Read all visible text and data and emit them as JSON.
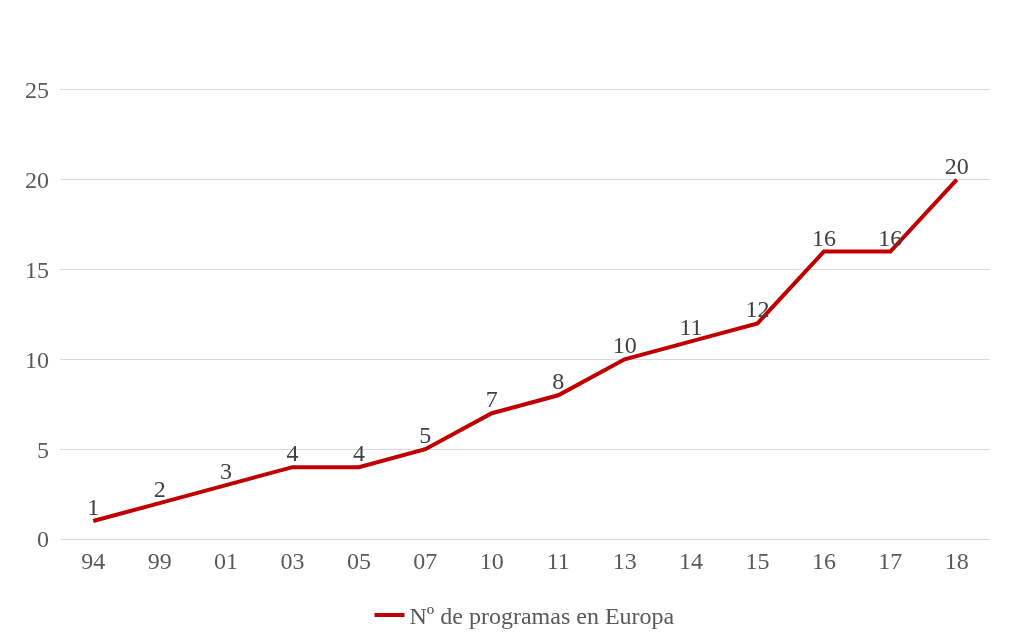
{
  "chart_data": {
    "type": "line",
    "categories": [
      "94",
      "99",
      "01",
      "03",
      "05",
      "07",
      "10",
      "11",
      "13",
      "14",
      "15",
      "16",
      "17",
      "18"
    ],
    "series": [
      {
        "name": "Nº de programas en Europa",
        "color": "#c00000",
        "values": [
          1,
          2,
          3,
          4,
          4,
          5,
          7,
          8,
          10,
          11,
          12,
          16,
          16,
          20
        ]
      }
    ],
    "ylim": [
      0,
      30
    ],
    "yticks": [
      0,
      5,
      10,
      15,
      20,
      25
    ],
    "grid": "y",
    "legend": "bottom",
    "data_labels": true,
    "marker": "none",
    "line_style": "solid"
  }
}
